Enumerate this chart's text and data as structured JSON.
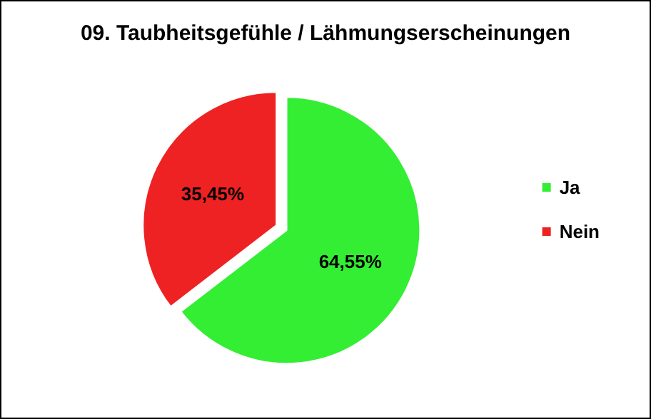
{
  "chart_data": {
    "type": "pie",
    "title": "09. Taubheitsgefühle / Lähmungserscheinungen",
    "categories": [
      "Ja",
      "Nein"
    ],
    "values": [
      64.55,
      35.45
    ],
    "value_labels": [
      "64,55%",
      "35,45%"
    ],
    "colors": [
      "#33ee33",
      "#ee2222"
    ],
    "legend": "right"
  }
}
